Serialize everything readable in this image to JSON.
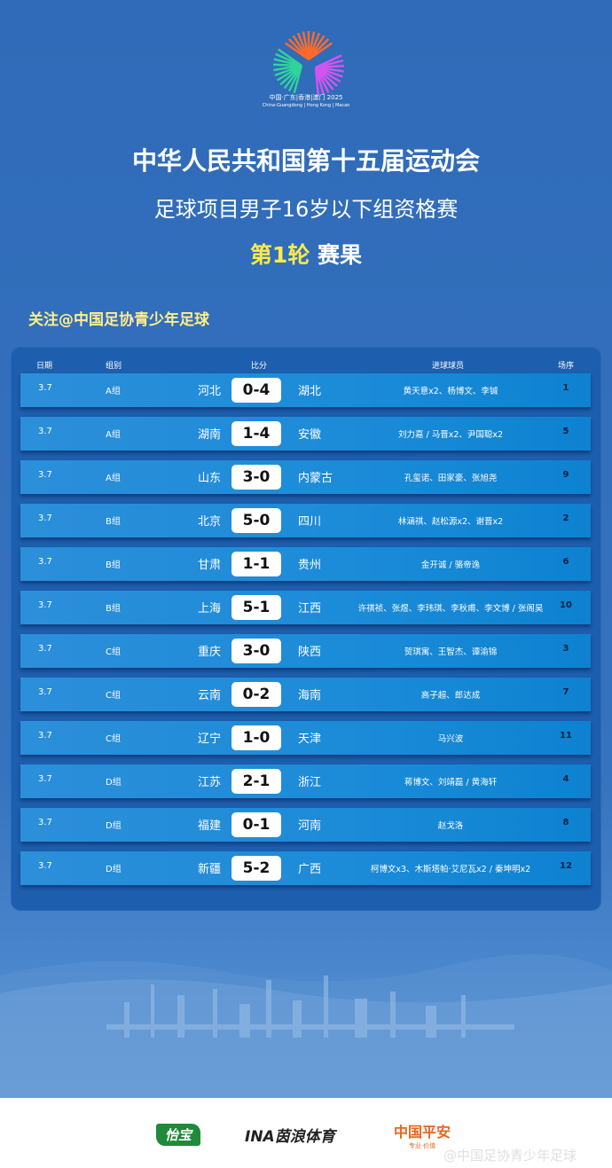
{
  "logo": {
    "line1": "中国·广东|香港|澳门 2025",
    "line2": "China-Guangdong | Hong Kong | Macao"
  },
  "title": {
    "line1": "中华人民共和国第十五届运动会",
    "line2": "足球项目男子16岁以下组资格赛",
    "round": "第1轮",
    "suffix": "赛果"
  },
  "follow": "关注@中国足协青少年足球",
  "headers": {
    "date": "日期",
    "group": "组别",
    "score": "比分",
    "scorers": "进球球员",
    "match_no": "场序"
  },
  "rows": [
    {
      "date": "3.7",
      "group": "A组",
      "home": "河北",
      "score": "0-4",
      "away": "湖北",
      "scorers": "黄天意x2、杨博文、李铖",
      "no": "1"
    },
    {
      "date": "3.7",
      "group": "A组",
      "home": "湖南",
      "score": "1-4",
      "away": "安徽",
      "scorers": "刘力嘉 / 马晋x2、尹国聪x2",
      "no": "5"
    },
    {
      "date": "3.7",
      "group": "A组",
      "home": "山东",
      "score": "3-0",
      "away": "内蒙古",
      "scorers": "孔玺诺、田家豪、张旭尧",
      "no": "9"
    },
    {
      "date": "3.7",
      "group": "B组",
      "home": "北京",
      "score": "5-0",
      "away": "四川",
      "scorers": "林涵祺、赵松源x2、谢晋x2",
      "no": "2"
    },
    {
      "date": "3.7",
      "group": "B组",
      "home": "甘肃",
      "score": "1-1",
      "away": "贵州",
      "scorers": "金开诚 / 骆帝逸",
      "no": "6"
    },
    {
      "date": "3.7",
      "group": "B组",
      "home": "上海",
      "score": "5-1",
      "away": "江西",
      "scorers": "许祺祯、张煜、李玮琪、李秋甫、李文博 / 张阁昊",
      "no": "10"
    },
    {
      "date": "3.7",
      "group": "C组",
      "home": "重庆",
      "score": "3-0",
      "away": "陕西",
      "scorers": "贺琪寓、王智杰、谭渝锦",
      "no": "3"
    },
    {
      "date": "3.7",
      "group": "C组",
      "home": "云南",
      "score": "0-2",
      "away": "海南",
      "scorers": "高子超、郎达成",
      "no": "7"
    },
    {
      "date": "3.7",
      "group": "C组",
      "home": "辽宁",
      "score": "1-0",
      "away": "天津",
      "scorers": "马兴波",
      "no": "11"
    },
    {
      "date": "3.7",
      "group": "D组",
      "home": "江苏",
      "score": "2-1",
      "away": "浙江",
      "scorers": "蒋博文、刘靖磊 / 黄海轩",
      "no": "4"
    },
    {
      "date": "3.7",
      "group": "D组",
      "home": "福建",
      "score": "0-1",
      "away": "河南",
      "scorers": "赵戈洛",
      "no": "8"
    },
    {
      "date": "3.7",
      "group": "D组",
      "home": "新疆",
      "score": "5-2",
      "away": "广西",
      "scorers": "柯博文x3、木斯塔帕·艾尼瓦x2 / 秦坤明x2",
      "no": "12"
    }
  ],
  "sponsors": [
    {
      "name": "怡宝",
      "color": "#1f8a3a"
    },
    {
      "name": "INA茵浪体育",
      "color": "#222222"
    },
    {
      "name": "中国平安",
      "tagline": "专业·价值",
      "color": "#e8641e"
    }
  ],
  "watermark": "@中国足协青少年足球"
}
